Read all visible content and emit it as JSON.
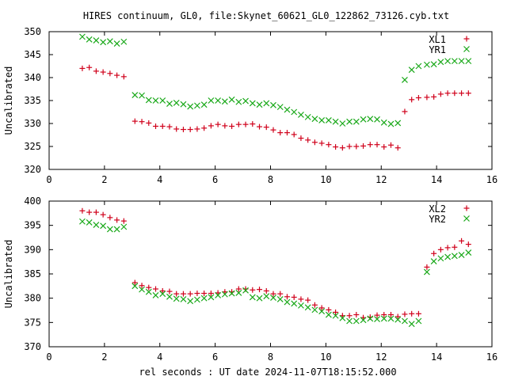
{
  "title": "HIRES continuum, GL0, file:Skynet_60621_GL0_122862_73126.cyb.txt",
  "xlabel": "rel seconds : UT date 2024-11-07T18:15:52.000",
  "colors": {
    "red": "#d0011b",
    "green": "#18a818"
  },
  "chart_data": [
    {
      "type": "scatter",
      "ylabel": "Uncalibrated",
      "xlim": [
        0,
        16
      ],
      "ylim": [
        320,
        350
      ],
      "xticks": [
        "0",
        "2",
        "4",
        "6",
        "8",
        "10",
        "12",
        "14",
        "16"
      ],
      "yticks": [
        "320",
        "325",
        "330",
        "335",
        "340",
        "345",
        "350"
      ],
      "legend_position": "top-right",
      "series": [
        {
          "name": "XL1",
          "marker": "plus",
          "color": "red",
          "x": [
            1.2,
            1.45,
            1.7,
            1.95,
            2.2,
            2.45,
            2.7,
            3.1,
            3.35,
            3.6,
            3.85,
            4.1,
            4.35,
            4.6,
            4.85,
            5.1,
            5.35,
            5.6,
            5.85,
            6.1,
            6.35,
            6.6,
            6.85,
            7.1,
            7.35,
            7.6,
            7.85,
            8.1,
            8.35,
            8.6,
            8.85,
            9.1,
            9.35,
            9.6,
            9.85,
            10.1,
            10.35,
            10.6,
            10.85,
            11.1,
            11.35,
            11.6,
            11.85,
            12.1,
            12.35,
            12.6,
            12.85,
            13.1,
            13.35,
            13.65,
            13.9,
            14.15,
            14.4,
            14.65,
            14.9,
            15.15
          ],
          "y": [
            342.0,
            342.2,
            341.4,
            341.2,
            340.9,
            340.5,
            340.2,
            330.5,
            330.4,
            330.1,
            329.4,
            329.4,
            329.3,
            328.8,
            328.7,
            328.7,
            328.8,
            329.0,
            329.5,
            329.8,
            329.5,
            329.4,
            329.8,
            329.8,
            329.9,
            329.3,
            329.2,
            328.6,
            328.0,
            328.0,
            327.6,
            326.8,
            326.4,
            325.9,
            325.7,
            325.4,
            324.9,
            324.7,
            325.0,
            325.0,
            325.1,
            325.4,
            325.4,
            324.9,
            325.3,
            324.7,
            332.6,
            335.2,
            335.6,
            335.7,
            335.8,
            336.4,
            336.6,
            336.6,
            336.6,
            336.6
          ]
        },
        {
          "name": "YR1",
          "marker": "cross",
          "color": "green",
          "x": [
            1.2,
            1.45,
            1.7,
            1.95,
            2.2,
            2.45,
            2.7,
            3.1,
            3.35,
            3.6,
            3.85,
            4.1,
            4.35,
            4.6,
            4.85,
            5.1,
            5.35,
            5.6,
            5.85,
            6.1,
            6.35,
            6.6,
            6.85,
            7.1,
            7.35,
            7.6,
            7.85,
            8.1,
            8.35,
            8.6,
            8.85,
            9.1,
            9.35,
            9.6,
            9.85,
            10.1,
            10.35,
            10.6,
            10.85,
            11.1,
            11.35,
            11.6,
            11.85,
            12.1,
            12.35,
            12.6,
            12.85,
            13.1,
            13.35,
            13.65,
            13.9,
            14.15,
            14.4,
            14.65,
            14.9,
            15.15
          ],
          "y": [
            348.9,
            348.3,
            348.1,
            347.7,
            347.9,
            347.4,
            347.8,
            336.2,
            336.1,
            335.1,
            335.0,
            335.0,
            334.3,
            334.5,
            334.2,
            333.7,
            333.9,
            334.1,
            335.0,
            335.0,
            334.8,
            335.2,
            334.7,
            334.9,
            334.4,
            334.1,
            334.4,
            334.0,
            333.6,
            333.0,
            332.5,
            331.9,
            331.4,
            331.0,
            330.7,
            330.7,
            330.4,
            330.0,
            330.4,
            330.4,
            330.9,
            331.0,
            330.9,
            330.2,
            329.9,
            330.1,
            339.5,
            341.7,
            342.5,
            342.8,
            342.9,
            343.4,
            343.6,
            343.6,
            343.6,
            343.6
          ]
        }
      ]
    },
    {
      "type": "scatter",
      "ylabel": "Uncalibrated",
      "xlim": [
        0,
        16
      ],
      "ylim": [
        370,
        400
      ],
      "xticks": [
        "0",
        "2",
        "4",
        "6",
        "8",
        "10",
        "12",
        "14",
        "16"
      ],
      "yticks": [
        "370",
        "375",
        "380",
        "385",
        "390",
        "395",
        "400"
      ],
      "legend_position": "top-right",
      "series": [
        {
          "name": "XL2",
          "marker": "plus",
          "color": "red",
          "x": [
            1.2,
            1.45,
            1.7,
            1.95,
            2.2,
            2.45,
            2.7,
            3.1,
            3.35,
            3.6,
            3.85,
            4.1,
            4.35,
            4.6,
            4.85,
            5.1,
            5.35,
            5.6,
            5.85,
            6.1,
            6.35,
            6.6,
            6.85,
            7.1,
            7.35,
            7.6,
            7.85,
            8.1,
            8.35,
            8.6,
            8.85,
            9.1,
            9.35,
            9.6,
            9.85,
            10.1,
            10.35,
            10.6,
            10.85,
            11.1,
            11.35,
            11.6,
            11.85,
            12.1,
            12.35,
            12.6,
            12.85,
            13.1,
            13.35,
            13.65,
            13.9,
            14.15,
            14.4,
            14.65,
            14.9,
            15.15
          ],
          "y": [
            398.0,
            397.7,
            397.7,
            397.2,
            396.6,
            396.1,
            395.9,
            383.2,
            382.6,
            382.2,
            381.9,
            381.5,
            381.4,
            380.9,
            380.9,
            380.9,
            381.0,
            381.0,
            381.0,
            381.1,
            381.3,
            381.3,
            381.9,
            381.9,
            381.7,
            381.8,
            381.5,
            380.9,
            380.9,
            380.3,
            380.2,
            379.8,
            379.6,
            378.6,
            378.0,
            377.6,
            377.1,
            376.4,
            376.4,
            376.6,
            376.0,
            376.1,
            376.5,
            376.6,
            376.6,
            376.2,
            376.7,
            376.8,
            376.8,
            386.4,
            389.2,
            390.0,
            390.4,
            390.5,
            391.8,
            391.1
          ]
        },
        {
          "name": "YR2",
          "marker": "cross",
          "color": "green",
          "x": [
            1.2,
            1.45,
            1.7,
            1.95,
            2.2,
            2.45,
            2.7,
            3.1,
            3.35,
            3.6,
            3.85,
            4.1,
            4.35,
            4.6,
            4.85,
            5.1,
            5.35,
            5.6,
            5.85,
            6.1,
            6.35,
            6.6,
            6.85,
            7.1,
            7.35,
            7.6,
            7.85,
            8.1,
            8.35,
            8.6,
            8.85,
            9.1,
            9.35,
            9.6,
            9.85,
            10.1,
            10.35,
            10.6,
            10.85,
            11.1,
            11.35,
            11.6,
            11.85,
            12.1,
            12.35,
            12.6,
            12.85,
            13.1,
            13.35,
            13.65,
            13.9,
            14.15,
            14.4,
            14.65,
            14.9,
            15.15
          ],
          "y": [
            395.8,
            395.6,
            395.1,
            394.9,
            394.2,
            394.2,
            394.7,
            382.5,
            381.8,
            381.3,
            380.6,
            380.9,
            380.3,
            379.9,
            379.8,
            379.4,
            379.7,
            380.0,
            380.2,
            380.6,
            380.8,
            381.0,
            381.1,
            381.6,
            380.2,
            380.0,
            380.4,
            380.1,
            379.8,
            379.2,
            378.9,
            378.5,
            378.1,
            377.6,
            377.3,
            376.6,
            376.4,
            375.9,
            375.3,
            375.3,
            375.5,
            375.8,
            375.7,
            375.8,
            375.8,
            375.6,
            375.3,
            374.7,
            375.3,
            385.4,
            387.6,
            388.2,
            388.5,
            388.7,
            388.9,
            389.4
          ]
        }
      ]
    }
  ]
}
